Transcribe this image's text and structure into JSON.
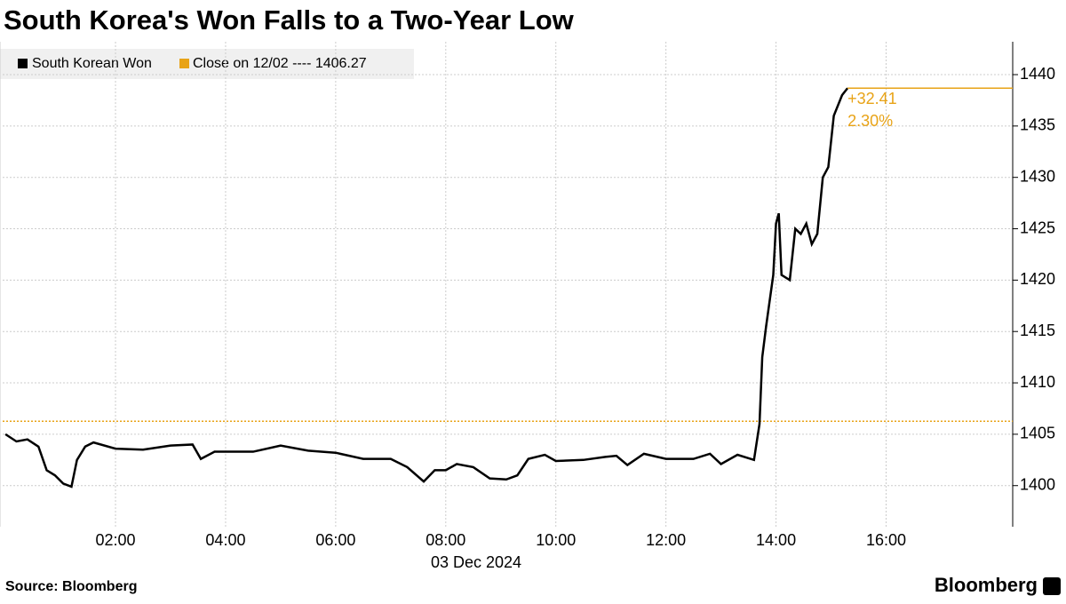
{
  "chart_data": {
    "type": "line",
    "title": "South Korea's Won Falls to a Two-Year Low",
    "x_axis_label": "03 Dec 2024",
    "source": "Source: Bloomberg",
    "brand": "Bloomberg",
    "x": [
      0.0,
      0.2,
      0.4,
      0.6,
      0.75,
      0.9,
      1.05,
      1.2,
      1.3,
      1.45,
      1.6,
      2.0,
      2.5,
      3.0,
      3.4,
      3.55,
      3.8,
      4.5,
      5.0,
      5.5,
      6.0,
      6.5,
      7.0,
      7.3,
      7.6,
      7.8,
      8.0,
      8.2,
      8.5,
      8.8,
      9.1,
      9.3,
      9.5,
      9.8,
      10.0,
      10.5,
      10.9,
      11.1,
      11.3,
      11.6,
      12.0,
      12.5,
      12.8,
      13.0,
      13.3,
      13.6,
      13.7,
      13.75,
      13.82,
      13.95,
      14.0,
      14.05,
      14.1,
      14.25,
      14.35,
      14.45,
      14.55,
      14.65,
      14.75,
      14.85,
      14.95,
      15.05,
      15.2,
      15.3
    ],
    "series": [
      {
        "name": "South Korean Won",
        "color": "#000000",
        "values": [
          1405.0,
          1404.3,
          1404.5,
          1403.8,
          1401.5,
          1401.0,
          1400.2,
          1399.9,
          1402.5,
          1403.8,
          1404.2,
          1403.6,
          1403.5,
          1403.9,
          1404.0,
          1402.6,
          1403.3,
          1403.3,
          1403.9,
          1403.4,
          1403.2,
          1402.6,
          1402.6,
          1401.8,
          1400.4,
          1401.5,
          1401.5,
          1402.1,
          1401.8,
          1400.7,
          1400.6,
          1401.0,
          1402.6,
          1403.0,
          1402.4,
          1402.5,
          1402.8,
          1402.9,
          1402.0,
          1403.1,
          1402.6,
          1402.6,
          1403.1,
          1402.1,
          1403.0,
          1402.5,
          1406.0,
          1412.5,
          1415.5,
          1420.5,
          1425.5,
          1426.5,
          1420.5,
          1420.0,
          1425.0,
          1424.5,
          1425.5,
          1423.5,
          1424.5,
          1430.0,
          1431.0,
          1436.0,
          1438.0,
          1438.68
        ]
      }
    ],
    "reference_line": {
      "label": "Close on 12/02 ---- 1406.27",
      "value": 1406.27,
      "color": "#e8a317"
    },
    "change_label": "+32.41",
    "change_pct_label": "2.30%",
    "xlim": [
      -0.05,
      18.3
    ],
    "ylim": [
      1396,
      1443.2
    ],
    "xticks": [
      {
        "value": 2,
        "label": "02:00"
      },
      {
        "value": 4,
        "label": "04:00"
      },
      {
        "value": 6,
        "label": "06:00"
      },
      {
        "value": 8,
        "label": "08:00"
      },
      {
        "value": 10,
        "label": "10:00"
      },
      {
        "value": 12,
        "label": "12:00"
      },
      {
        "value": 14,
        "label": "14:00"
      },
      {
        "value": 16,
        "label": "16:00"
      }
    ],
    "yticks": [
      1400,
      1405,
      1410,
      1415,
      1420,
      1425,
      1430,
      1435,
      1440
    ],
    "grid": true
  }
}
